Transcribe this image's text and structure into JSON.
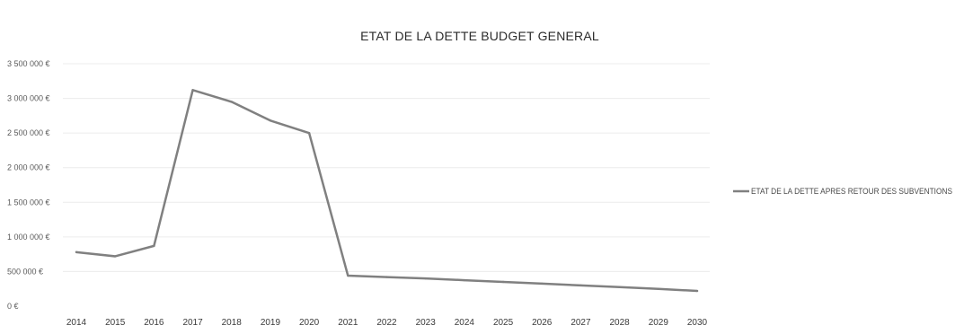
{
  "chart_data": {
    "type": "line",
    "title": "ETAT DE LA DETTE BUDGET GENERAL",
    "xlabel": "",
    "ylabel": "",
    "x": [
      "2014",
      "2015",
      "2016",
      "2017",
      "2018",
      "2019",
      "2020",
      "2021",
      "2022",
      "2023",
      "2024",
      "2025",
      "2026",
      "2027",
      "2028",
      "2029",
      "2030"
    ],
    "y_ticks": [
      "0 €",
      "500 000 €",
      "1 000 000 €",
      "1 500 000 €",
      "2 000 000 €",
      "2 500 000 €",
      "3 000 000 €",
      "3 500 000 €"
    ],
    "ylim": [
      0,
      3500000
    ],
    "grid": true,
    "legend_position": "right",
    "series": [
      {
        "name": "ETAT DE LA DETTE APRES RETOUR DES SUBVENTIONS",
        "color": "#808080",
        "values": [
          780000,
          720000,
          870000,
          3120000,
          2950000,
          2680000,
          2500000,
          440000,
          420000,
          400000,
          375000,
          350000,
          325000,
          300000,
          275000,
          250000,
          220000
        ]
      }
    ]
  }
}
